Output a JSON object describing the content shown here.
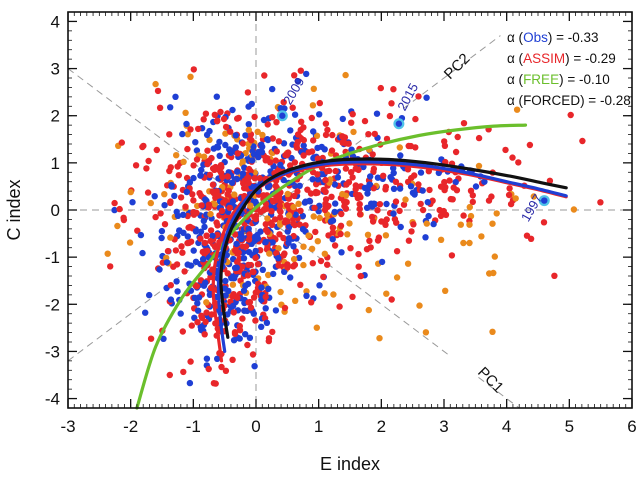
{
  "chart_data": {
    "type": "scatter",
    "xlabel": "E index",
    "ylabel": "C index",
    "xlim": [
      -3,
      6
    ],
    "ylim": [
      -4.2,
      4.2
    ],
    "x_ticks": [
      "-3",
      "-2",
      "-1",
      "0",
      "1",
      "2",
      "3",
      "4",
      "5",
      "6"
    ],
    "y_ticks": [
      "-4",
      "-3",
      "-2",
      "-1",
      "0",
      "1",
      "2",
      "3",
      "4"
    ],
    "grid": false,
    "reference_lines": [
      {
        "kind": "zero",
        "axis": "x",
        "value": 0,
        "style": "dashed"
      },
      {
        "kind": "zero",
        "axis": "y",
        "value": 0,
        "style": "dashed"
      },
      {
        "kind": "principal_component",
        "label": "PC2",
        "style": "dashed"
      },
      {
        "kind": "principal_component",
        "label": "PC1",
        "style": "dashed"
      }
    ],
    "pc_labels": [
      "PC2",
      "PC1"
    ],
    "legend": {
      "placement": "top-right",
      "entries": [
        {
          "prefix": "α (",
          "name": "Obs",
          "suffix": ") = -0.33",
          "color": "#1f3fd4"
        },
        {
          "prefix": "α (",
          "name": "ASSIM",
          "suffix": ") = -0.29",
          "color": "#e8262a"
        },
        {
          "prefix": "α (",
          "name": "FREE",
          "suffix": ") = -0.10",
          "color": "#6bbf2c"
        },
        {
          "prefix": "α (",
          "name": "FORCED",
          "suffix": ") = -0.28",
          "color": "#111111"
        }
      ]
    },
    "fit_curves": [
      {
        "name": "FREE",
        "color": "#6bbf2c",
        "x": [
          -1.9,
          -1.6,
          -1.2,
          -0.8,
          -0.4,
          0.0,
          0.5,
          1.0,
          1.5,
          2.0,
          2.6,
          3.2,
          3.8,
          4.3
        ],
        "y": [
          -4.2,
          -2.9,
          -1.9,
          -1.2,
          -0.5,
          0.05,
          0.55,
          0.95,
          1.2,
          1.4,
          1.58,
          1.7,
          1.78,
          1.8
        ]
      },
      {
        "name": "ASSIM",
        "color": "#e8262a",
        "x": [
          -0.55,
          -0.62,
          -0.68,
          -0.66,
          -0.55,
          -0.38,
          -0.12,
          0.2,
          0.6,
          1.1,
          1.6,
          2.2,
          2.8,
          3.4,
          4.0,
          4.5,
          4.95
        ],
        "y": [
          -3.2,
          -2.5,
          -1.8,
          -1.2,
          -0.6,
          -0.1,
          0.3,
          0.6,
          0.82,
          0.94,
          0.98,
          0.96,
          0.88,
          0.75,
          0.58,
          0.43,
          0.28
        ]
      },
      {
        "name": "OBS",
        "color": "#1f3fd4",
        "x": [
          -0.5,
          -0.57,
          -0.6,
          -0.56,
          -0.45,
          -0.28,
          -0.05,
          0.25,
          0.65,
          1.1,
          1.6,
          2.2,
          2.8,
          3.4,
          4.0,
          4.5,
          4.95
        ],
        "y": [
          -3.0,
          -2.3,
          -1.6,
          -1.0,
          -0.45,
          0.0,
          0.38,
          0.66,
          0.86,
          0.98,
          1.02,
          1.0,
          0.92,
          0.78,
          0.6,
          0.45,
          0.3
        ]
      },
      {
        "name": "FORCED",
        "color": "#111111",
        "x": [
          -0.45,
          -0.52,
          -0.56,
          -0.52,
          -0.4,
          -0.22,
          0.0,
          0.3,
          0.7,
          1.15,
          1.65,
          2.25,
          2.85,
          3.45,
          4.05,
          4.55,
          4.95
        ],
        "y": [
          -2.7,
          -2.1,
          -1.5,
          -0.95,
          -0.42,
          0.02,
          0.42,
          0.72,
          0.92,
          1.04,
          1.08,
          1.06,
          0.98,
          0.86,
          0.72,
          0.58,
          0.47
        ]
      }
    ],
    "highlighted_years": [
      {
        "label": "2009",
        "x": 0.42,
        "y": 2.0
      },
      {
        "label": "2015",
        "x": 2.28,
        "y": 1.83
      },
      {
        "label": "1997",
        "x": 4.6,
        "y": 0.2
      }
    ],
    "scatter_series": [
      {
        "name": "Obs",
        "color": "#1f3fd4",
        "count": 520,
        "clusters": [
          {
            "cx": -0.3,
            "cy": 0.0,
            "sx": 0.7,
            "sy": 1.1,
            "w": 0.6
          },
          {
            "cx": -0.5,
            "cy": -1.8,
            "sx": 0.35,
            "sy": 0.7,
            "w": 0.15
          },
          {
            "cx": 1.6,
            "cy": 0.6,
            "sx": 1.1,
            "sy": 0.6,
            "w": 0.25
          }
        ]
      },
      {
        "name": "ASSIM",
        "color": "#e8262a",
        "count": 720,
        "clusters": [
          {
            "cx": -0.2,
            "cy": 0.1,
            "sx": 0.8,
            "sy": 1.1,
            "w": 0.55
          },
          {
            "cx": -0.5,
            "cy": -2.0,
            "sx": 0.4,
            "sy": 0.7,
            "w": 0.12
          },
          {
            "cx": 1.8,
            "cy": 0.5,
            "sx": 1.3,
            "sy": 0.8,
            "w": 0.33
          }
        ]
      },
      {
        "name": "FREE",
        "color": "#ea8a1c",
        "count": 170,
        "clusters": [
          {
            "cx": 0.0,
            "cy": 0.0,
            "sx": 1.1,
            "sy": 1.2,
            "w": 0.65
          },
          {
            "cx": 2.2,
            "cy": -0.3,
            "sx": 1.4,
            "sy": 1.2,
            "w": 0.35
          }
        ]
      }
    ],
    "scatter_note_colors": {
      "obs": "#1f3fd4",
      "assim": "#e8262a",
      "free_points": "#ea8a1c"
    }
  }
}
